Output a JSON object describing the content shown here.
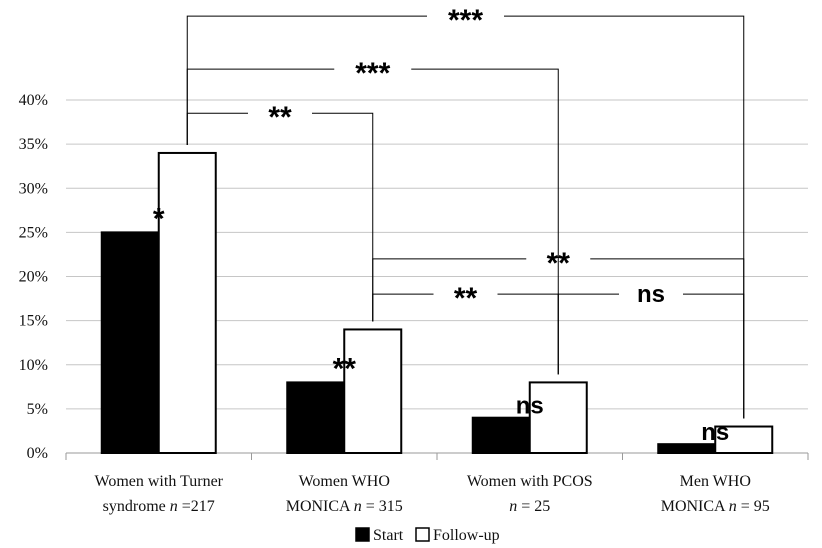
{
  "chart_data": {
    "type": "bar",
    "categories": [
      {
        "line1": "Women with Turner",
        "line2_pre": "syndrome ",
        "n_label": "n",
        "line2_post": " =217"
      },
      {
        "line1": "Women WHO",
        "line2_pre": "MONICA ",
        "n_label": "n",
        "line2_post": " = 315"
      },
      {
        "line1": "Women with PCOS",
        "line2_pre": "",
        "n_label": "n",
        "line2_post": " = 25"
      },
      {
        "line1": "Men WHO",
        "line2_pre": "MONICA ",
        "n_label": "n",
        "line2_post": " = 95"
      }
    ],
    "series": [
      {
        "name": "Start",
        "values": [
          25,
          8,
          4,
          1
        ],
        "fill": "#000000"
      },
      {
        "name": "Follow-up",
        "values": [
          34,
          14,
          8,
          3
        ],
        "fill": "#ffffff"
      }
    ],
    "yticks": [
      "0%",
      "5%",
      "10%",
      "15%",
      "20%",
      "25%",
      "30%",
      "35%",
      "40%"
    ],
    "ylim": [
      0,
      40
    ],
    "grid": true,
    "legend_position": "bottom",
    "bar_annotations": [
      "*",
      "**",
      "ns",
      "ns"
    ],
    "brackets": [
      {
        "from": 0,
        "to": 3,
        "label": "***",
        "y": 49.5
      },
      {
        "from": 0,
        "to": 2,
        "label": "***",
        "y": 43.5
      },
      {
        "from": 0,
        "to": 1,
        "label": "**",
        "y": 38.5
      },
      {
        "from": 1,
        "to": 3,
        "label": "**",
        "y": 22
      },
      {
        "from": 1,
        "to": 2,
        "label": "**",
        "y": 18
      },
      {
        "from": 2,
        "to": 3,
        "label": "ns",
        "y": 18
      }
    ]
  }
}
